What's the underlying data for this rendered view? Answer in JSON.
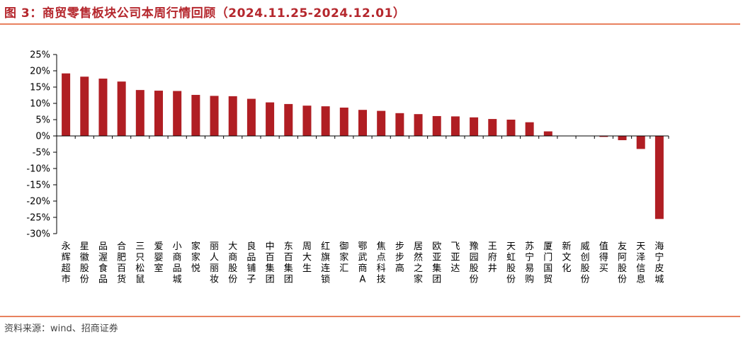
{
  "header": {
    "title": "图 3：商贸零售板块公司本周行情回顾（2024.11.25-2024.12.01）"
  },
  "footer": {
    "source": "资料来源：wind、招商证券"
  },
  "colors": {
    "accent": "#b5272d",
    "bar": "#b01e23",
    "rule": "#e8815f"
  },
  "chart_data": {
    "type": "bar",
    "title": "",
    "xlabel": "",
    "ylabel": "",
    "ylim": [
      -30,
      25
    ],
    "yticks": [
      "25%",
      "20%",
      "15%",
      "10%",
      "5%",
      "0%",
      "-5%",
      "-10%",
      "-15%",
      "-20%",
      "-25%",
      "-30%"
    ],
    "grid": false,
    "categories": [
      "永辉超市",
      "星徽股份",
      "品渥食品",
      "合肥百货",
      "三只松鼠",
      "爱婴室",
      "小商品城",
      "家家悦",
      "丽人丽妆",
      "大商股份",
      "良品铺子",
      "中百集团",
      "东百集团",
      "周大生",
      "红旗连锁",
      "御家汇",
      "鄂武商A",
      "焦点科技",
      "步步高",
      "居然之家",
      "欧亚集团",
      "飞亚达",
      "豫园股份",
      "王府井",
      "天虹股份",
      "苏宁易购",
      "厦门国贸",
      "新文化",
      "威创股份",
      "值得买",
      "友阿股份",
      "天泽信息",
      "海宁皮城"
    ],
    "values": [
      19.2,
      18.2,
      17.6,
      16.7,
      14.1,
      13.9,
      13.8,
      12.6,
      12.3,
      12.2,
      11.4,
      10.3,
      9.8,
      9.3,
      9.1,
      8.7,
      8.0,
      7.7,
      7.0,
      6.7,
      6.1,
      6.0,
      5.7,
      5.2,
      5.0,
      4.2,
      1.4,
      0.0,
      0.0,
      -0.3,
      -1.3,
      -4.0,
      -25.5
    ]
  }
}
